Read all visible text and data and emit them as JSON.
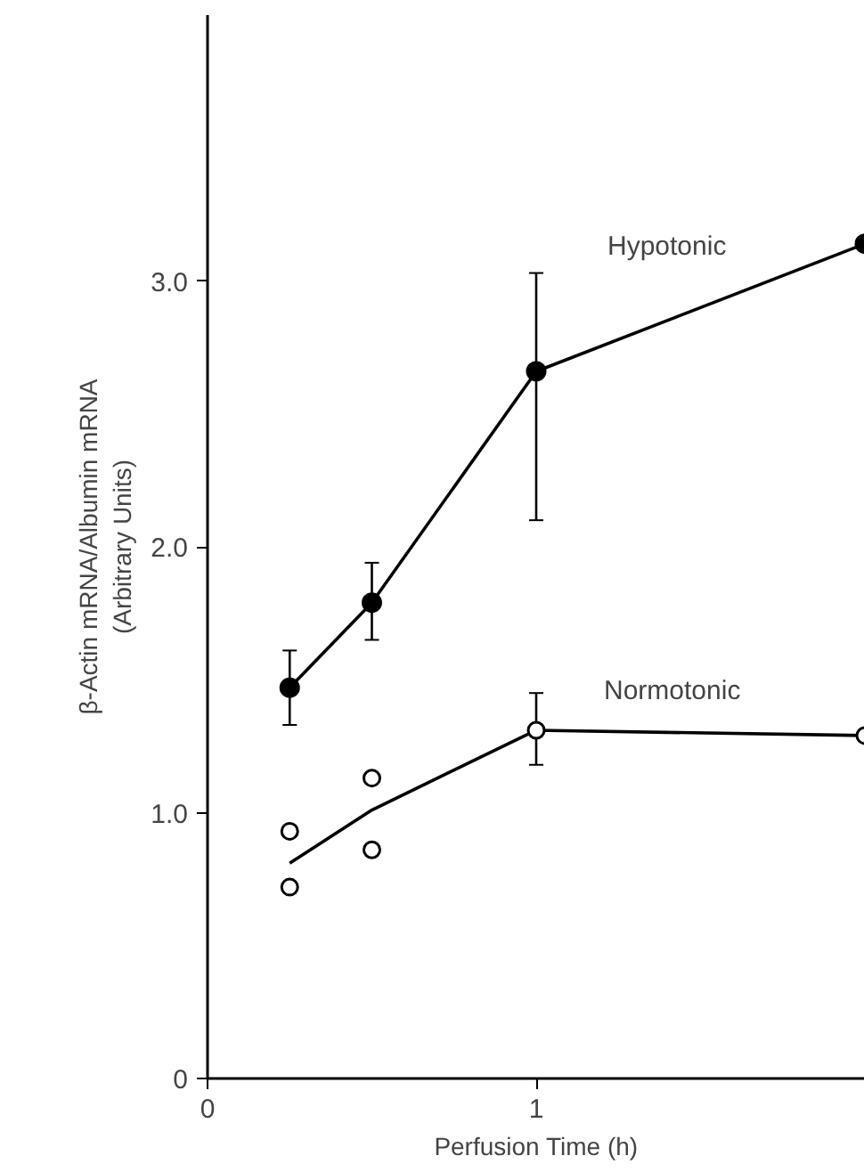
{
  "chart_data": {
    "type": "line",
    "xlabel": "Perfusion Time (h)",
    "ylabel": "β-Actin mRNA/Albumin mRNA\n(Arbitrary Units)",
    "xlim": [
      0,
      2
    ],
    "xticks": [
      0,
      1
    ],
    "ylim": [
      0,
      4.0
    ],
    "yticks": [
      0,
      {
        "value": 1,
        "label": "1.0"
      },
      {
        "value": 2,
        "label": "2.0"
      },
      {
        "value": 3,
        "label": "3.0"
      }
    ],
    "grid": false,
    "line_style": "solid",
    "series": [
      {
        "name": "Hypotonic",
        "marker": "circle",
        "color": "#000000",
        "x": [
          0.25,
          0.5,
          1,
          2
        ],
        "values": [
          1.47,
          1.79,
          2.66,
          3.14
        ],
        "errors": [
          [
            1.33,
            1.61
          ],
          [
            1.65,
            1.94
          ],
          [
            2.1,
            3.03
          ],
          null
        ]
      },
      {
        "name": "Normotonic",
        "marker": "none",
        "color": "#000000",
        "x": [
          0.25,
          0.5,
          1,
          2
        ],
        "values": [
          0.81,
          1.01,
          1.31,
          1.29
        ]
      },
      {
        "type": "scatter",
        "marker": "circle",
        "color": "#000000",
        "x": [
          0.25,
          0.25,
          0.5,
          0.5,
          1,
          2
        ],
        "values": [
          0.93,
          0.72,
          1.13,
          0.86,
          1.31,
          1.29
        ],
        "errors": [
          null,
          null,
          null,
          null,
          [
            1.18,
            1.45
          ],
          null
        ]
      }
    ]
  }
}
